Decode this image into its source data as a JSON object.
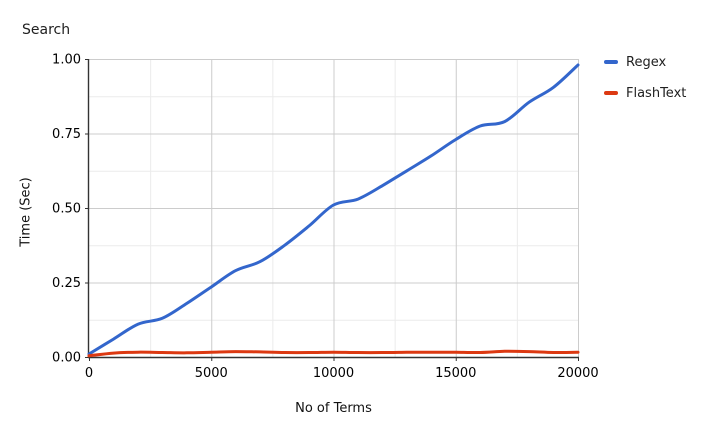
{
  "title": "Search",
  "colors": {
    "regex_line": "#3366CC",
    "flashtext_line": "#DC3912",
    "grid_major": "#CCCCCC",
    "grid_minor": "#EBEBEB",
    "axis_line": "#333333",
    "tick_text": "#000000",
    "title_text": "#212121"
  },
  "legend": {
    "position": "right",
    "items": [
      {
        "label": "Regex"
      },
      {
        "label": "FlashText"
      }
    ]
  },
  "chart_data": {
    "type": "line",
    "title": "Search",
    "xlabel": "No of Terms",
    "ylabel": "Time (Sec)",
    "xlim": [
      0,
      20000
    ],
    "ylim": [
      0,
      1.0
    ],
    "grid": "major and minor gridlines on",
    "legend_position": "right",
    "x_tick_labels": [
      "0",
      "5000",
      "10000",
      "15000",
      "20000"
    ],
    "x_major_ticks": [
      0,
      5000,
      10000,
      15000,
      20000
    ],
    "x_minor_ticks": [
      2500,
      7500,
      12500,
      17500
    ],
    "y_tick_labels": [
      "0.00",
      "0.25",
      "0.50",
      "0.75",
      "1.00"
    ],
    "y_major_ticks": [
      0,
      0.25,
      0.5,
      0.75,
      1.0
    ],
    "y_minor_ticks": [
      0.125,
      0.375,
      0.625,
      0.875
    ],
    "x": [
      0,
      1000,
      2000,
      3000,
      4000,
      5000,
      6000,
      7000,
      8000,
      9000,
      10000,
      11000,
      12000,
      13000,
      14000,
      15000,
      16000,
      17000,
      18000,
      19000,
      20000
    ],
    "series": [
      {
        "name": "Regex",
        "color": "#3366CC",
        "values": [
          0.01,
          0.06,
          0.11,
          0.13,
          0.18,
          0.235,
          0.29,
          0.32,
          0.375,
          0.44,
          0.51,
          0.53,
          0.575,
          0.625,
          0.675,
          0.73,
          0.775,
          0.79,
          0.855,
          0.905,
          0.98
        ]
      },
      {
        "name": "FlashText",
        "color": "#DC3912",
        "values": [
          0.004,
          0.013,
          0.016,
          0.015,
          0.014,
          0.016,
          0.018,
          0.017,
          0.015,
          0.015,
          0.016,
          0.015,
          0.015,
          0.016,
          0.016,
          0.016,
          0.015,
          0.019,
          0.018,
          0.015,
          0.016
        ]
      }
    ]
  }
}
